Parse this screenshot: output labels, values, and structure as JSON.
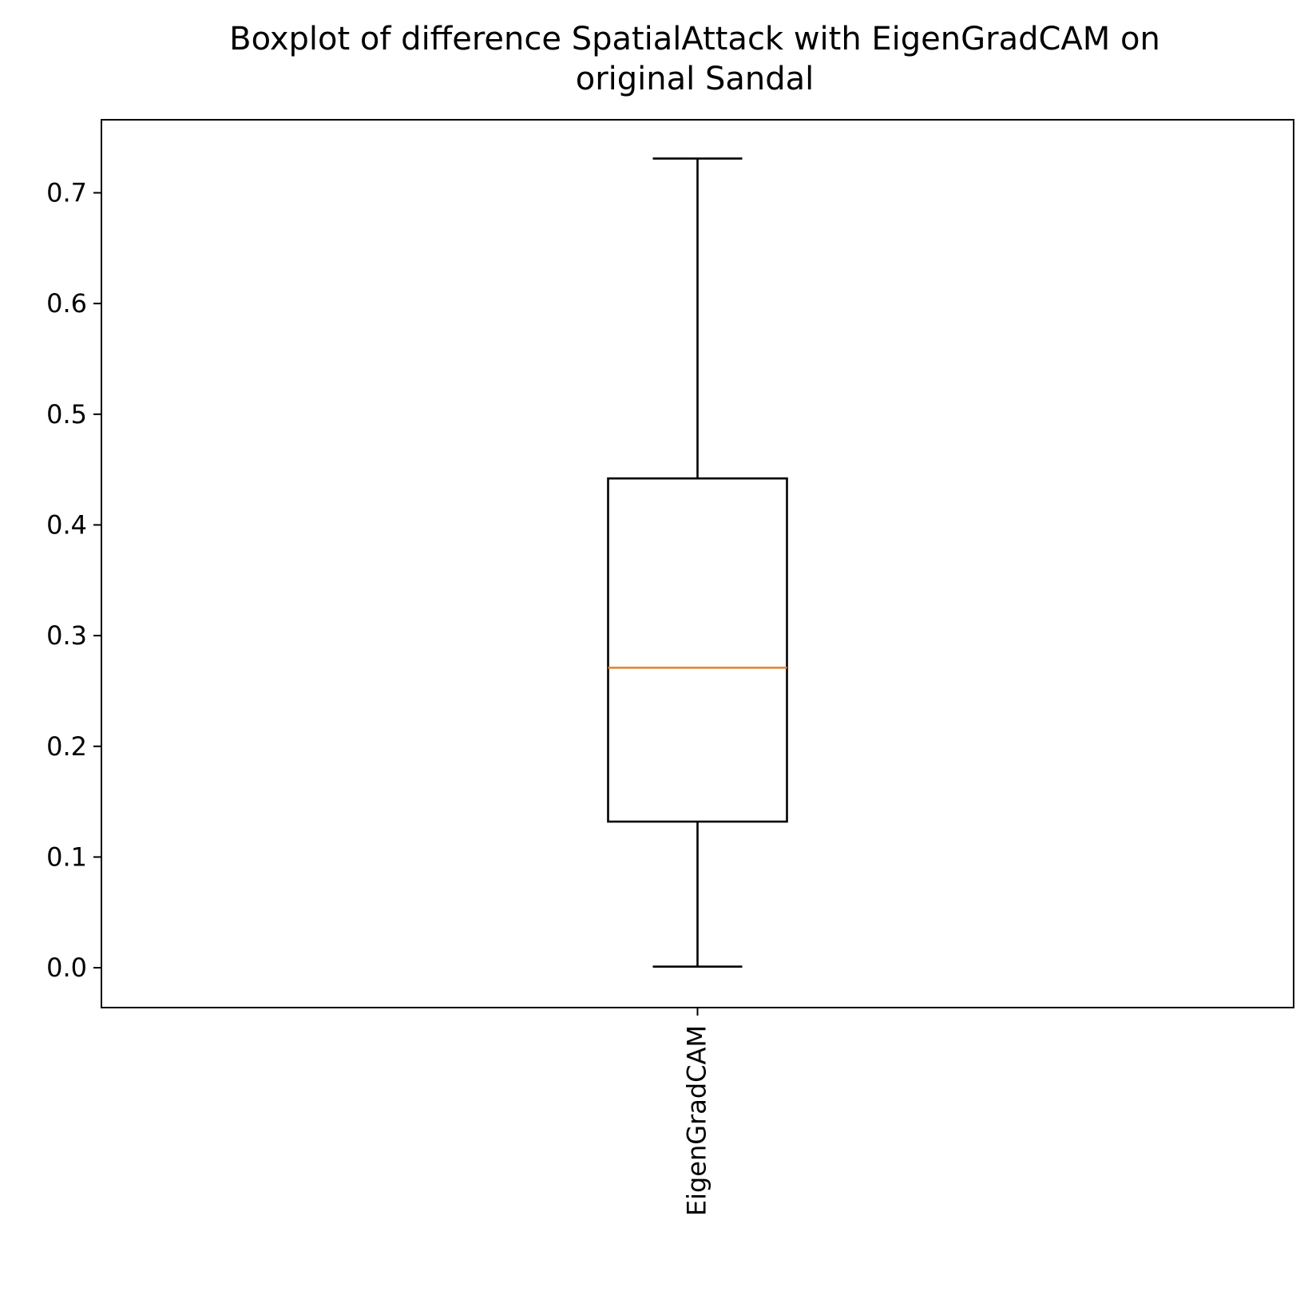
{
  "chart_data": {
    "type": "boxplot",
    "title_line1": "Boxplot of difference SpatialAttack with EigenGradCAM on",
    "title_line2": "original Sandal",
    "xlabel": "",
    "ylabel": "",
    "categories": [
      "EigenGradCAM"
    ],
    "boxes": [
      {
        "category": "EigenGradCAM",
        "whisker_low": 0.001,
        "q1": 0.132,
        "median": 0.271,
        "q3": 0.442,
        "whisker_high": 0.731
      }
    ],
    "ylim": [
      -0.036,
      0.766
    ],
    "yticks": [
      0.0,
      0.1,
      0.2,
      0.3,
      0.4,
      0.5,
      0.6,
      0.7
    ],
    "ytick_labels": [
      "0.0",
      "0.1",
      "0.2",
      "0.3",
      "0.4",
      "0.5",
      "0.6",
      "0.7"
    ],
    "xtick_rotation": "vertical",
    "grid": false,
    "colors": {
      "box": "#000000",
      "median": "#e08a2c",
      "axes": "#000000",
      "background": "#ffffff"
    }
  }
}
